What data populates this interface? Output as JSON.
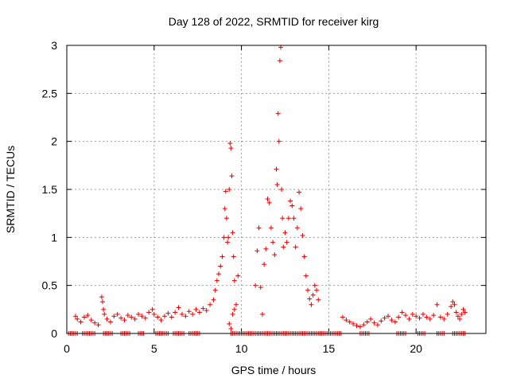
{
  "chart_data": {
    "type": "scatter",
    "title": "Day 128 of 2022, SRMTID for receiver kirg",
    "xlabel": "GPS time / hours",
    "ylabel": "SRMTID / TECUs",
    "xlim": [
      0,
      24
    ],
    "ylim": [
      0,
      3
    ],
    "x_ticks": [
      0,
      5,
      10,
      15,
      20
    ],
    "x_tick_labels": [
      "0",
      "5",
      "10",
      "15",
      "20"
    ],
    "y_ticks": [
      0,
      0.5,
      1,
      1.5,
      2,
      2.5,
      3
    ],
    "y_tick_labels": [
      "0",
      "0.5",
      "1",
      "1.5",
      "2",
      "2.5",
      "3"
    ],
    "grid": true,
    "marker": "+",
    "color": "#e00000",
    "series": [
      {
        "name": "SRMTID",
        "points": [
          [
            0.5,
            0.18
          ],
          [
            0.6,
            0.15
          ],
          [
            0.8,
            0.12
          ],
          [
            1.0,
            0.17
          ],
          [
            1.2,
            0.19
          ],
          [
            1.4,
            0.14
          ],
          [
            1.6,
            0.11
          ],
          [
            1.8,
            0.09
          ],
          [
            2.0,
            0.38
          ],
          [
            2.05,
            0.33
          ],
          [
            2.1,
            0.25
          ],
          [
            2.15,
            0.2
          ],
          [
            2.3,
            0.15
          ],
          [
            2.5,
            0.12
          ],
          [
            2.7,
            0.18
          ],
          [
            2.9,
            0.2
          ],
          [
            3.1,
            0.16
          ],
          [
            3.3,
            0.14
          ],
          [
            3.5,
            0.19
          ],
          [
            3.7,
            0.17
          ],
          [
            3.9,
            0.15
          ],
          [
            4.1,
            0.2
          ],
          [
            4.3,
            0.18
          ],
          [
            4.5,
            0.16
          ],
          [
            4.7,
            0.22
          ],
          [
            4.9,
            0.25
          ],
          [
            5.0,
            0.2
          ],
          [
            5.2,
            0.17
          ],
          [
            5.4,
            0.14
          ],
          [
            5.6,
            0.18
          ],
          [
            5.8,
            0.21
          ],
          [
            6.0,
            0.17
          ],
          [
            6.2,
            0.22
          ],
          [
            6.4,
            0.27
          ],
          [
            6.6,
            0.2
          ],
          [
            6.8,
            0.18
          ],
          [
            7.0,
            0.23
          ],
          [
            7.2,
            0.2
          ],
          [
            7.4,
            0.25
          ],
          [
            7.6,
            0.22
          ],
          [
            7.8,
            0.26
          ],
          [
            8.0,
            0.24
          ],
          [
            8.2,
            0.3
          ],
          [
            8.4,
            0.35
          ],
          [
            8.5,
            0.45
          ],
          [
            8.6,
            0.55
          ],
          [
            8.7,
            0.62
          ],
          [
            8.8,
            0.7
          ],
          [
            8.9,
            0.8
          ],
          [
            9.0,
            1.0
          ],
          [
            9.05,
            1.3
          ],
          [
            9.1,
            1.48
          ],
          [
            9.15,
            1.2
          ],
          [
            9.2,
            0.95
          ],
          [
            9.25,
            1.0
          ],
          [
            9.3,
            1.5
          ],
          [
            9.35,
            1.98
          ],
          [
            9.4,
            1.93
          ],
          [
            9.45,
            1.64
          ],
          [
            9.5,
            1.05
          ],
          [
            9.55,
            0.8
          ],
          [
            9.6,
            0.55
          ],
          [
            9.7,
            0.3
          ],
          [
            9.8,
            0.6
          ],
          [
            9.3,
            0.1
          ],
          [
            9.4,
            0.05
          ],
          [
            9.5,
            0.2
          ],
          [
            9.6,
            0.25
          ],
          [
            10.8,
            0.5
          ],
          [
            10.9,
            0.86
          ],
          [
            11.0,
            1.1
          ],
          [
            11.1,
            0.48
          ],
          [
            11.2,
            0.2
          ],
          [
            11.3,
            0.72
          ],
          [
            11.4,
            0.88
          ],
          [
            11.5,
            1.4
          ],
          [
            11.6,
            1.36
          ],
          [
            11.7,
            1.1
          ],
          [
            11.8,
            0.95
          ],
          [
            11.9,
            0.82
          ],
          [
            12.0,
            1.71
          ],
          [
            12.05,
            1.55
          ],
          [
            12.1,
            2.29
          ],
          [
            12.15,
            2.0
          ],
          [
            12.2,
            2.84
          ],
          [
            12.25,
            2.98
          ],
          [
            12.3,
            1.5
          ],
          [
            12.35,
            1.2
          ],
          [
            12.4,
            0.9
          ],
          [
            12.5,
            1.05
          ],
          [
            12.6,
            0.95
          ],
          [
            12.7,
            1.2
          ],
          [
            12.8,
            1.38
          ],
          [
            12.9,
            1.33
          ],
          [
            13.0,
            1.2
          ],
          [
            13.1,
            0.9
          ],
          [
            13.2,
            1.1
          ],
          [
            13.3,
            1.47
          ],
          [
            13.4,
            1.3
          ],
          [
            13.5,
            1.02
          ],
          [
            13.6,
            0.8
          ],
          [
            13.7,
            0.6
          ],
          [
            13.8,
            0.45
          ],
          [
            13.9,
            0.36
          ],
          [
            14.0,
            0.3
          ],
          [
            14.1,
            0.4
          ],
          [
            14.2,
            0.5
          ],
          [
            14.3,
            0.45
          ],
          [
            14.4,
            0.35
          ],
          [
            15.8,
            0.17
          ],
          [
            16.0,
            0.14
          ],
          [
            16.2,
            0.12
          ],
          [
            16.4,
            0.1
          ],
          [
            16.6,
            0.08
          ],
          [
            16.8,
            0.07
          ],
          [
            17.0,
            0.09
          ],
          [
            17.2,
            0.12
          ],
          [
            17.4,
            0.15
          ],
          [
            17.6,
            0.11
          ],
          [
            17.8,
            0.09
          ],
          [
            18.0,
            0.13
          ],
          [
            18.2,
            0.16
          ],
          [
            18.4,
            0.18
          ],
          [
            18.6,
            0.14
          ],
          [
            18.8,
            0.12
          ],
          [
            19.0,
            0.17
          ],
          [
            19.2,
            0.22
          ],
          [
            19.4,
            0.19
          ],
          [
            19.6,
            0.15
          ],
          [
            19.8,
            0.2
          ],
          [
            20.0,
            0.18
          ],
          [
            20.2,
            0.16
          ],
          [
            20.4,
            0.2
          ],
          [
            20.6,
            0.17
          ],
          [
            20.8,
            0.15
          ],
          [
            21.0,
            0.19
          ],
          [
            21.2,
            0.3
          ],
          [
            21.4,
            0.17
          ],
          [
            21.6,
            0.15
          ],
          [
            21.8,
            0.2
          ],
          [
            22.0,
            0.28
          ],
          [
            22.1,
            0.33
          ],
          [
            22.2,
            0.3
          ],
          [
            22.3,
            0.22
          ],
          [
            22.4,
            0.18
          ],
          [
            22.5,
            0.15
          ],
          [
            22.6,
            0.2
          ],
          [
            22.7,
            0.25
          ],
          [
            22.8,
            0.22
          ]
        ],
        "zero_bands": [
          [
            0.1,
            0.6
          ],
          [
            0.9,
            1.6
          ],
          [
            2.1,
            2.6
          ],
          [
            3.1,
            3.6
          ],
          [
            4.1,
            4.4
          ],
          [
            5.1,
            5.8
          ],
          [
            6.1,
            6.7
          ],
          [
            7.0,
            7.6
          ],
          [
            9.4,
            15.7
          ],
          [
            16.8,
            17.3
          ],
          [
            18.9,
            19.4
          ],
          [
            20.1,
            20.5
          ],
          [
            21.2,
            21.6
          ],
          [
            22.1,
            22.8
          ]
        ]
      }
    ]
  }
}
